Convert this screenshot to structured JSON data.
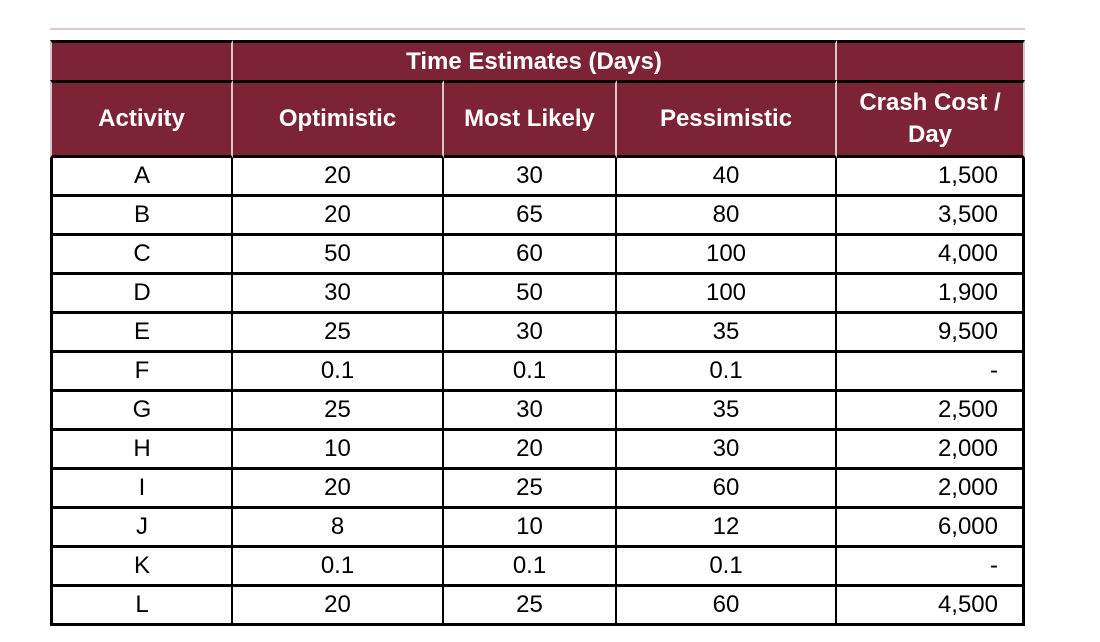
{
  "table": {
    "group_header": "Time Estimates (Days)",
    "columns": [
      "Activity",
      "Optimistic",
      "Most Likely",
      "Pessimistic",
      "Crash Cost / Day"
    ],
    "rows": [
      [
        "A",
        "20",
        "30",
        "40",
        "1,500"
      ],
      [
        "B",
        "20",
        "65",
        "80",
        "3,500"
      ],
      [
        "C",
        "50",
        "60",
        "100",
        "4,000"
      ],
      [
        "D",
        "30",
        "50",
        "100",
        "1,900"
      ],
      [
        "E",
        "25",
        "30",
        "35",
        "9,500"
      ],
      [
        "F",
        "0.1",
        "0.1",
        "0.1",
        "-"
      ],
      [
        "G",
        "25",
        "30",
        "35",
        "2,500"
      ],
      [
        "H",
        "10",
        "20",
        "30",
        "2,000"
      ],
      [
        "I",
        "20",
        "25",
        "60",
        "2,000"
      ],
      [
        "J",
        "8",
        "10",
        "12",
        "6,000"
      ],
      [
        "K",
        "0.1",
        "0.1",
        "0.1",
        "-"
      ],
      [
        "L",
        "20",
        "25",
        "60",
        "4,500"
      ]
    ],
    "colors": {
      "header_bg": "#7d2336",
      "header_text": "#ffffff",
      "header_divider": "#d9c4c9",
      "grid_border": "#000000",
      "body_text": "#000000",
      "body_bg": "#ffffff",
      "top_strip": "#c49aa2"
    }
  }
}
